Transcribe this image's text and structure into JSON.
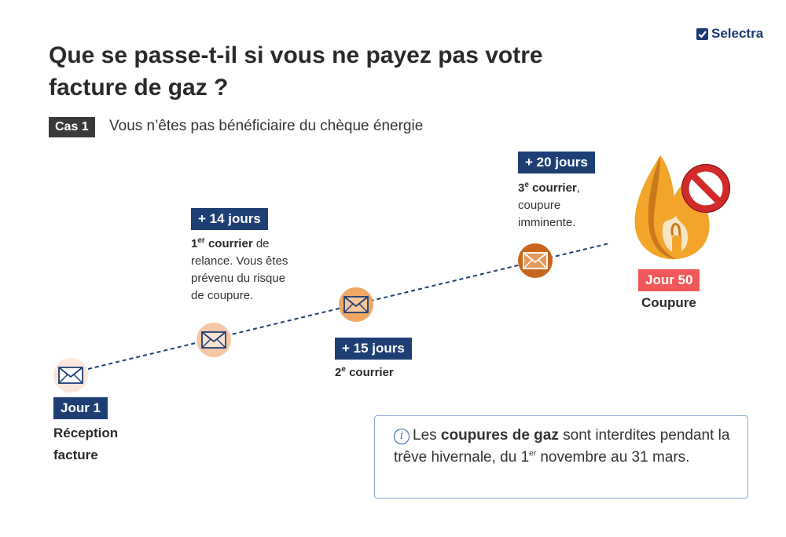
{
  "brand": {
    "name": "Selectra"
  },
  "title": "Que se passe-t-il si vous ne payez pas votre facture de gaz ?",
  "case": {
    "tag": "Cas 1",
    "text": "Vous n’êtes pas bénéficiaire du chèque énergie"
  },
  "steps": {
    "day1": {
      "badge": "Jour 1",
      "label_line1": "Réception",
      "label_line2": "facture"
    },
    "plus14": {
      "badge": "+ 14 jours",
      "sup": "er",
      "bold": "courrier",
      "prefix": "1",
      "rest_line1": " de",
      "line2": "relance. Vous êtes",
      "line3": "prévenu du risque",
      "line4": "de coupure."
    },
    "plus15": {
      "badge": "+ 15 jours",
      "prefix": "2",
      "sup": "e",
      "bold": "courrier"
    },
    "plus20": {
      "badge": "+ 20 jours",
      "prefix": "3",
      "sup": "e",
      "bold": "courrier",
      "rest_line1": ",",
      "line2": "coupure",
      "line3": "imminente."
    },
    "day50": {
      "badge": "Jour 50",
      "label": "Coupure"
    }
  },
  "info": {
    "icon": "info-icon",
    "text_before": "Les ",
    "bold": "coupures de gaz",
    "text_after": " sont interdites pendant la trêve hivernale, du 1",
    "sup": "er",
    "text_end": " novembre au 31 mars."
  },
  "colors": {
    "navy": "#1e3f73",
    "red_badge": "#f0585a",
    "envelope_light": "#fbe6dc",
    "envelope_peach": "#f6c7a6",
    "envelope_orange": "#f0a763",
    "envelope_dark": "#c8651e",
    "flame": "#f2a52a",
    "prohibited": "#d22a2a"
  },
  "icons": [
    "envelope-icon",
    "flame-icon",
    "prohibited-icon",
    "selectra-logo-icon"
  ]
}
